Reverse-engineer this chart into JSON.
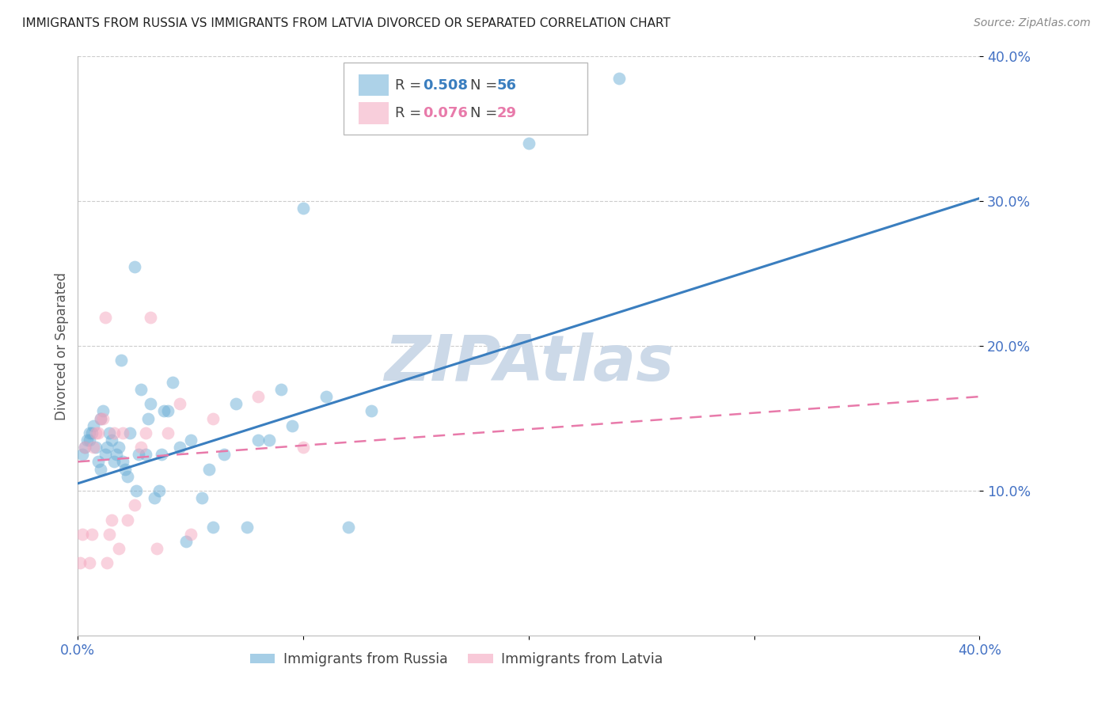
{
  "title": "IMMIGRANTS FROM RUSSIA VS IMMIGRANTS FROM LATVIA DIVORCED OR SEPARATED CORRELATION CHART",
  "source": "Source: ZipAtlas.com",
  "ylabel": "Divorced or Separated",
  "xlim": [
    0.0,
    0.4
  ],
  "ylim": [
    0.0,
    0.4
  ],
  "x_ticks": [
    0.0,
    0.1,
    0.2,
    0.3,
    0.4
  ],
  "y_ticks": [
    0.1,
    0.2,
    0.3,
    0.4
  ],
  "x_tick_labels": [
    "0.0%",
    "",
    "",
    "",
    "40.0%"
  ],
  "y_tick_labels": [
    "10.0%",
    "20.0%",
    "30.0%",
    "40.0%"
  ],
  "russia_R": 0.508,
  "russia_N": 56,
  "latvia_R": 0.076,
  "latvia_N": 29,
  "russia_color": "#6baed6",
  "latvia_color": "#f4a6be",
  "russia_line_color": "#3a7ebf",
  "latvia_line_color": "#e87aaa",
  "watermark": "ZIPAtlas",
  "watermark_color": "#ccd9e8",
  "russia_scatter_x": [
    0.002,
    0.003,
    0.004,
    0.005,
    0.005,
    0.006,
    0.007,
    0.008,
    0.009,
    0.01,
    0.01,
    0.011,
    0.012,
    0.013,
    0.014,
    0.015,
    0.016,
    0.017,
    0.018,
    0.019,
    0.02,
    0.021,
    0.022,
    0.023,
    0.025,
    0.026,
    0.027,
    0.028,
    0.03,
    0.031,
    0.032,
    0.034,
    0.036,
    0.037,
    0.038,
    0.04,
    0.042,
    0.045,
    0.048,
    0.05,
    0.055,
    0.058,
    0.06,
    0.065,
    0.07,
    0.075,
    0.08,
    0.085,
    0.09,
    0.095,
    0.1,
    0.11,
    0.12,
    0.13,
    0.2,
    0.24
  ],
  "russia_scatter_y": [
    0.125,
    0.13,
    0.135,
    0.135,
    0.14,
    0.14,
    0.145,
    0.13,
    0.12,
    0.115,
    0.15,
    0.155,
    0.125,
    0.13,
    0.14,
    0.135,
    0.12,
    0.125,
    0.13,
    0.19,
    0.12,
    0.115,
    0.11,
    0.14,
    0.255,
    0.1,
    0.125,
    0.17,
    0.125,
    0.15,
    0.16,
    0.095,
    0.1,
    0.125,
    0.155,
    0.155,
    0.175,
    0.13,
    0.065,
    0.135,
    0.095,
    0.115,
    0.075,
    0.125,
    0.16,
    0.075,
    0.135,
    0.135,
    0.17,
    0.145,
    0.295,
    0.165,
    0.075,
    0.155,
    0.34,
    0.385
  ],
  "latvia_scatter_x": [
    0.001,
    0.002,
    0.003,
    0.005,
    0.006,
    0.007,
    0.008,
    0.009,
    0.01,
    0.011,
    0.012,
    0.013,
    0.014,
    0.015,
    0.016,
    0.018,
    0.02,
    0.022,
    0.025,
    0.028,
    0.03,
    0.032,
    0.035,
    0.04,
    0.045,
    0.05,
    0.06,
    0.08,
    0.1
  ],
  "latvia_scatter_y": [
    0.05,
    0.07,
    0.13,
    0.05,
    0.07,
    0.13,
    0.14,
    0.14,
    0.15,
    0.15,
    0.22,
    0.05,
    0.07,
    0.08,
    0.14,
    0.06,
    0.14,
    0.08,
    0.09,
    0.13,
    0.14,
    0.22,
    0.06,
    0.14,
    0.16,
    0.07,
    0.15,
    0.165,
    0.13
  ],
  "russia_line": {
    "x0": 0.0,
    "y0": 0.105,
    "x1": 0.4,
    "y1": 0.302
  },
  "latvia_line": {
    "x0": 0.0,
    "y0": 0.12,
    "x1": 0.4,
    "y1": 0.165
  }
}
